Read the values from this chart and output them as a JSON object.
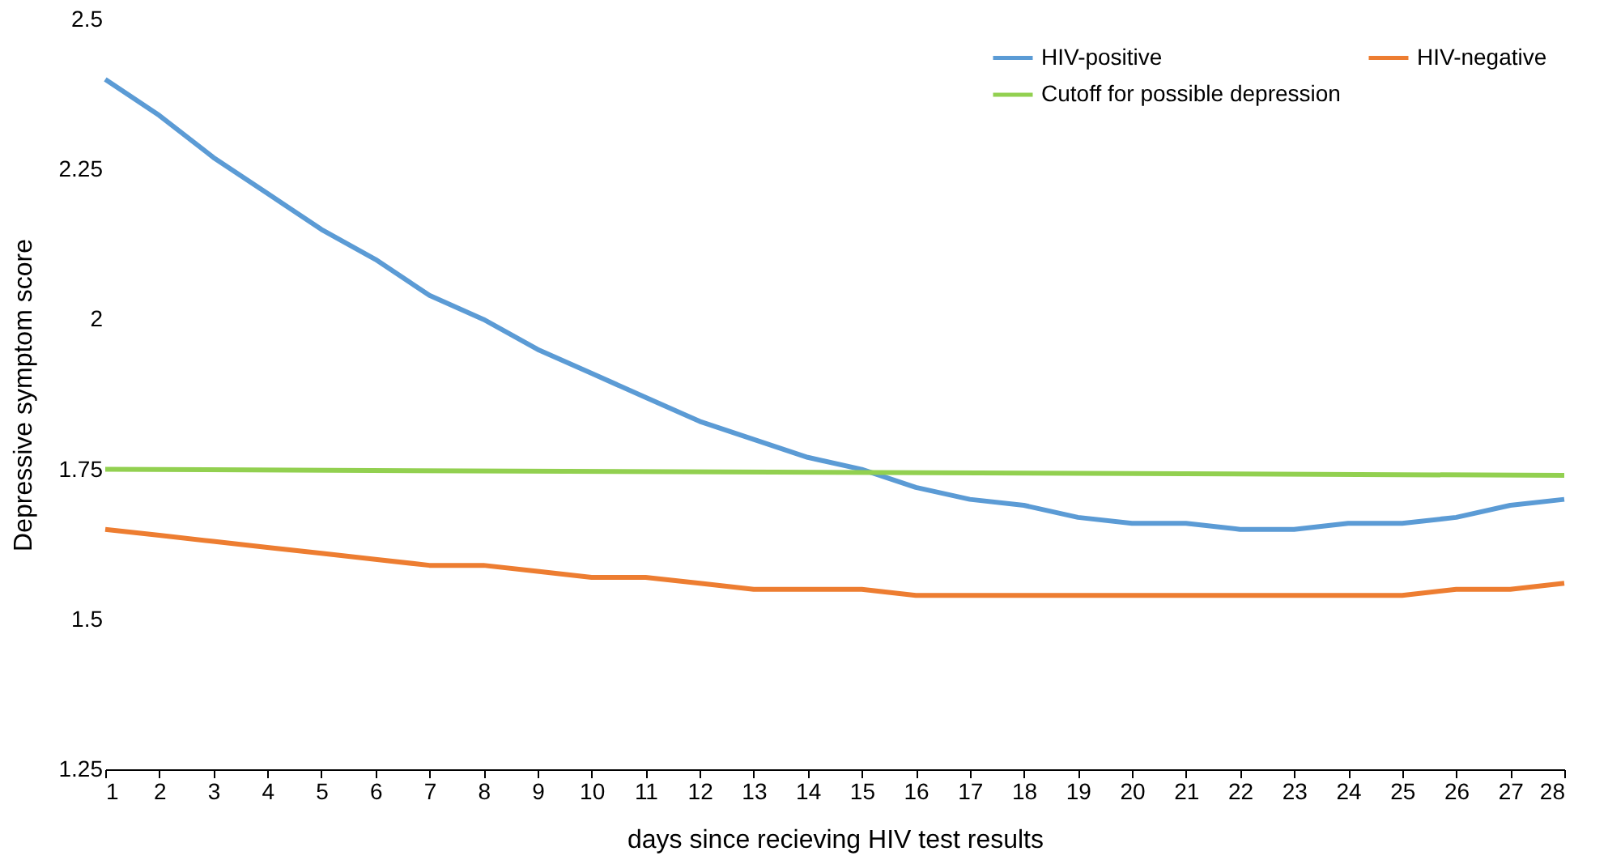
{
  "chart_data": {
    "type": "line",
    "xlabel": "days since recieving HIV test results",
    "ylabel": "Depressive symptom score",
    "x": [
      1,
      2,
      3,
      4,
      5,
      6,
      7,
      8,
      9,
      10,
      11,
      12,
      13,
      14,
      15,
      16,
      17,
      18,
      19,
      20,
      21,
      22,
      23,
      24,
      25,
      26,
      27,
      28
    ],
    "xlim": [
      1,
      28
    ],
    "xticks": [
      1,
      2,
      3,
      4,
      5,
      6,
      7,
      8,
      9,
      10,
      11,
      12,
      13,
      14,
      15,
      16,
      17,
      18,
      19,
      20,
      21,
      22,
      23,
      24,
      25,
      26,
      27,
      28
    ],
    "ylim": [
      1.25,
      2.5
    ],
    "yticks": [
      1.25,
      {
        "value": 1.5,
        "label": "1.5"
      },
      1.75,
      {
        "value": 2,
        "label": "2"
      },
      2.25,
      {
        "value": 2.5,
        "label": "2.5"
      }
    ],
    "grid": false,
    "legend": "top right",
    "marker": "none",
    "line_style": "solid",
    "series": [
      {
        "name": "HIV-positive",
        "color": "#5b9bd5",
        "values": [
          2.4,
          2.34,
          2.27,
          2.21,
          2.15,
          2.1,
          2.04,
          2.0,
          1.95,
          1.91,
          1.87,
          1.83,
          1.8,
          1.77,
          1.75,
          1.72,
          1.7,
          1.69,
          1.67,
          1.66,
          1.66,
          1.65,
          1.65,
          1.66,
          1.66,
          1.67,
          1.69,
          1.7
        ]
      },
      {
        "name": "HIV-negative",
        "color": "#ed7d31",
        "values": [
          1.65,
          1.64,
          1.63,
          1.62,
          1.61,
          1.6,
          1.59,
          1.59,
          1.58,
          1.57,
          1.57,
          1.56,
          1.55,
          1.55,
          1.55,
          1.54,
          1.54,
          1.54,
          1.54,
          1.54,
          1.54,
          1.54,
          1.54,
          1.54,
          1.54,
          1.55,
          1.55,
          1.56
        ]
      },
      {
        "name": "Cutoff for possible depression",
        "color": "#92d050",
        "x": [
          1,
          28
        ],
        "values": [
          1.75,
          1.74
        ]
      }
    ]
  }
}
